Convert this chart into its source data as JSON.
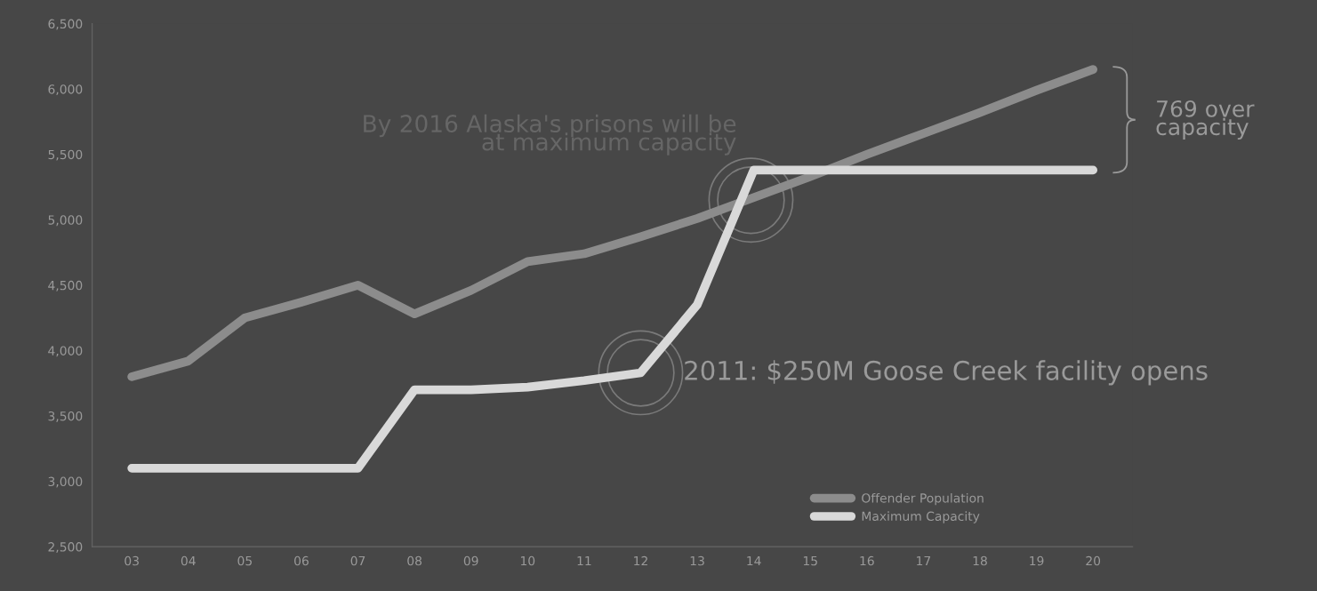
{
  "chart_data": {
    "type": "line",
    "categories": [
      "03",
      "04",
      "05",
      "06",
      "07",
      "08",
      "09",
      "10",
      "11",
      "12",
      "13",
      "14",
      "15",
      "16",
      "17",
      "18",
      "19",
      "20"
    ],
    "series": [
      {
        "name": "Offender Population",
        "color": "#8c8c8c",
        "values": [
          3800,
          3920,
          4250,
          4370,
          4500,
          4280,
          4460,
          4680,
          4740,
          4870,
          5010,
          5170,
          5330,
          5500,
          5660,
          5820,
          5990,
          6150
        ]
      },
      {
        "name": "Maximum Capacity",
        "color": "#d9d9d9",
        "values": [
          3100,
          3100,
          3100,
          3100,
          3100,
          3700,
          3700,
          3720,
          3770,
          3830,
          4350,
          5380,
          5380,
          5380,
          5380,
          5380,
          5380,
          5380
        ]
      }
    ],
    "ylim": [
      2500,
      6500
    ],
    "yticks": [
      {
        "value": 2500,
        "label": "2,500"
      },
      {
        "value": 3000,
        "label": "3,000"
      },
      {
        "value": 3500,
        "label": "3,500"
      },
      {
        "value": 4000,
        "label": "4,000"
      },
      {
        "value": 4500,
        "label": "4,500"
      },
      {
        "value": 5000,
        "label": "5,000"
      },
      {
        "value": 5500,
        "label": "5,500"
      },
      {
        "value": 6000,
        "label": "6,000"
      },
      {
        "value": 6500,
        "label": "6,500"
      }
    ],
    "annotations": [
      "By 2016 Alaska's prisons will be\nat maximum capacity",
      {
        "text": "2011: $250M Goose Creek facility opens",
        "x": "12",
        "y": 3830
      },
      "769 over\ncapacity"
    ],
    "grid": false,
    "legend": "bottom right",
    "marker": "none",
    "line_style": "solid"
  }
}
